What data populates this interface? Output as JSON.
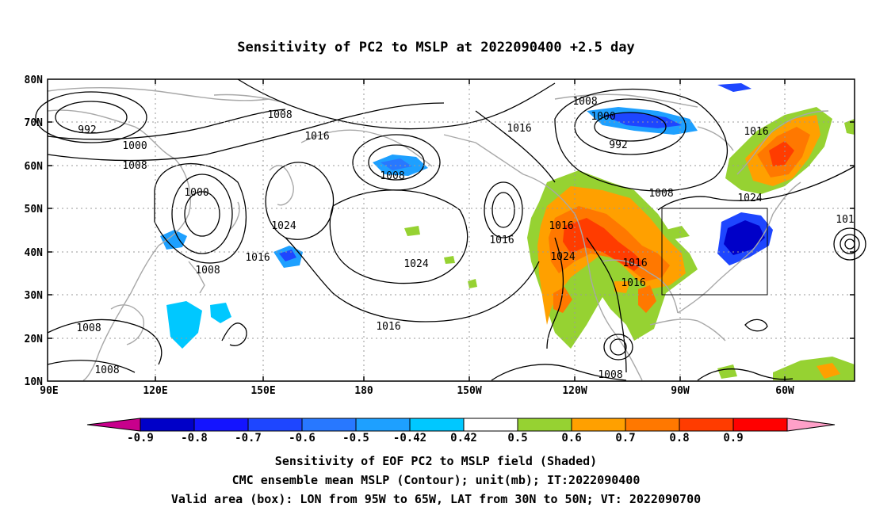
{
  "title": "Sensitivity of PC2 to MSLP at 2022090400 +2.5 day",
  "axes": {
    "lat_labels": [
      "80N",
      "70N",
      "60N",
      "50N",
      "40N",
      "30N",
      "20N",
      "10N"
    ],
    "lon_labels": [
      "90E",
      "120E",
      "150E",
      "180",
      "150W",
      "120W",
      "90W",
      "60W"
    ]
  },
  "contour_labels": [
    "992",
    "1000",
    "1008",
    "1008",
    "1016",
    "1008",
    "1000",
    "1024",
    "1016",
    "1008",
    "1016",
    "1024",
    "1008",
    "1016",
    "1008",
    "1024",
    "1016",
    "1016",
    "1008",
    "1016",
    "1016",
    "1000",
    "992",
    "1008",
    "1016",
    "1024",
    "1008",
    "1008",
    "1016",
    "101"
  ],
  "colorbar": {
    "labels": [
      "-0.9",
      "-0.8",
      "-0.7",
      "-0.6",
      "-0.5",
      "-0.42",
      "0.42",
      "0.5",
      "0.6",
      "0.7",
      "0.8",
      "0.9"
    ],
    "colors": [
      "#0000c8",
      "#1414ff",
      "#1e46ff",
      "#2878ff",
      "#1ea0ff",
      "#00c8ff",
      "#ffffff",
      "#96d232",
      "#ffa000",
      "#ff7800",
      "#ff3c00",
      "#ff0000"
    ],
    "end_low": "#c8008c",
    "end_high": "#ffa0c8"
  },
  "captions": {
    "line1": "Sensitivity of EOF PC2 to MSLP field (Shaded)",
    "line2": "CMC ensemble mean MSLP (Contour); unit(mb); IT:2022090400",
    "line3": "Valid area (box): LON from 95W to 65W, LAT from 30N to 50N; VT: 2022090700"
  },
  "valid_box": {
    "lon_range": "95W to 65W",
    "lat_range": "30N to 50N"
  }
}
